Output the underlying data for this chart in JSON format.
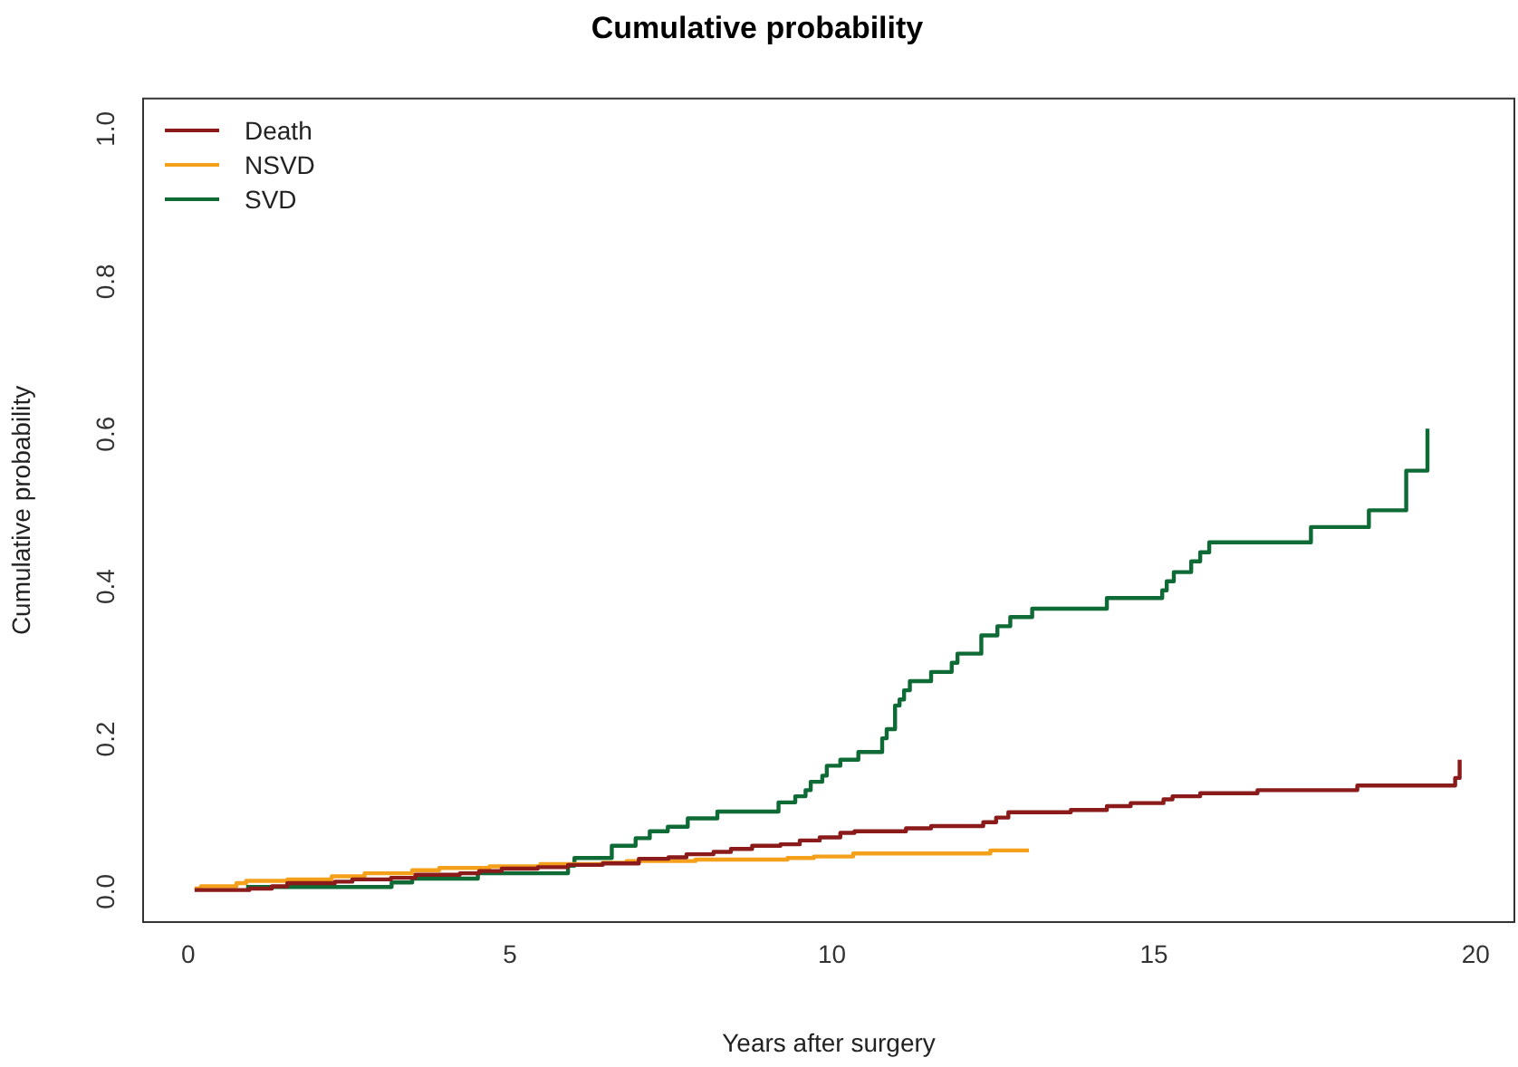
{
  "chart_data": {
    "type": "step",
    "title": "Cumulative probability",
    "xlabel": "Years after surgery",
    "ylabel": "Cumulative probability",
    "xlim": [
      -0.7,
      20.6
    ],
    "ylim": [
      -0.04,
      1.04
    ],
    "xticks": [
      0,
      5,
      10,
      15,
      20
    ],
    "yticks": [
      {
        "value": 0,
        "label": "0.0"
      },
      {
        "value": 0.2,
        "label": "0.2"
      },
      {
        "value": 0.4,
        "label": "0.4"
      },
      {
        "value": 0.6,
        "label": "0.6"
      },
      {
        "value": 0.8,
        "label": "0.8"
      },
      {
        "value": 1,
        "label": "1.0"
      }
    ],
    "grid": false,
    "legend": "top left",
    "line_style": "solid",
    "marker": "none",
    "series": [
      {
        "name": "Death",
        "color": "#8b1a1a",
        "x": [
          0.1,
          0.95,
          1.3,
          1.54,
          2.28,
          2.55,
          3.15,
          3.53,
          4.22,
          4.52,
          4.87,
          5.43,
          5.9,
          6.44,
          7.0,
          7.46,
          7.74,
          8.16,
          8.43,
          8.76,
          9.2,
          9.5,
          9.81,
          10.13,
          10.35,
          11.15,
          11.54,
          12.35,
          12.55,
          12.74,
          13.71,
          14.27,
          14.64,
          15.15,
          15.29,
          15.72,
          16.61,
          18.16,
          19.68,
          19.75
        ],
        "values": [
          0.002,
          0.004,
          0.007,
          0.011,
          0.013,
          0.016,
          0.018,
          0.022,
          0.024,
          0.027,
          0.03,
          0.032,
          0.035,
          0.037,
          0.043,
          0.045,
          0.049,
          0.052,
          0.056,
          0.06,
          0.062,
          0.067,
          0.071,
          0.077,
          0.079,
          0.083,
          0.086,
          0.091,
          0.097,
          0.104,
          0.107,
          0.112,
          0.116,
          0.121,
          0.125,
          0.129,
          0.133,
          0.139,
          0.149,
          0.173
        ]
      },
      {
        "name": "NSVD",
        "color": "#f5a01a",
        "x": [
          0.1,
          0.2,
          0.75,
          0.9,
          1.54,
          2.23,
          2.74,
          3.48,
          3.9,
          4.68,
          5.47,
          6.44,
          6.81,
          7.88,
          9.31,
          9.72,
          10.33,
          12.46,
          13.06
        ],
        "values": [
          0.004,
          0.007,
          0.011,
          0.014,
          0.016,
          0.02,
          0.024,
          0.028,
          0.031,
          0.033,
          0.036,
          0.038,
          0.04,
          0.042,
          0.044,
          0.046,
          0.05,
          0.054,
          0.054
        ]
      },
      {
        "name": "SVD",
        "color": "#0e6b35",
        "x": [
          0.9,
          3.16,
          3.48,
          4.5,
          5.9,
          6.0,
          6.58,
          6.95,
          7.17,
          7.45,
          7.76,
          8.22,
          9.17,
          9.43,
          9.59,
          9.67,
          9.85,
          9.92,
          10.13,
          10.41,
          10.78,
          10.85,
          10.98,
          11.05,
          11.12,
          11.21,
          11.54,
          11.86,
          11.95,
          12.32,
          12.57,
          12.77,
          13.11,
          14.27,
          15.13,
          15.2,
          15.31,
          15.58,
          15.72,
          15.86,
          17.44,
          18.34,
          18.92,
          19.25
        ],
        "values": [
          0.006,
          0.012,
          0.017,
          0.024,
          0.034,
          0.044,
          0.06,
          0.07,
          0.079,
          0.085,
          0.096,
          0.105,
          0.117,
          0.125,
          0.133,
          0.144,
          0.152,
          0.165,
          0.173,
          0.183,
          0.201,
          0.213,
          0.244,
          0.252,
          0.264,
          0.276,
          0.288,
          0.3,
          0.312,
          0.336,
          0.348,
          0.36,
          0.371,
          0.385,
          0.395,
          0.407,
          0.419,
          0.433,
          0.445,
          0.458,
          0.478,
          0.5,
          0.552,
          0.607
        ]
      }
    ]
  }
}
